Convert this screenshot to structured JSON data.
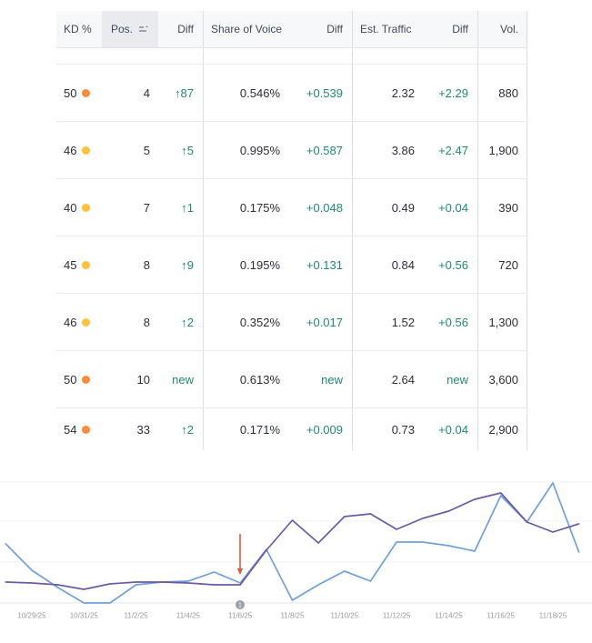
{
  "table": {
    "headers": {
      "kd": "KD %",
      "pos": "Pos.",
      "diff1": "Diff",
      "sov": "Share of Voice",
      "diff2": "Diff",
      "traffic": "Est. Traffic",
      "diff3": "Diff",
      "vol": "Vol."
    },
    "rows": [
      {
        "kd": "50",
        "kd_color": "#f98c3d",
        "pos": "4",
        "pos_diff": "↑87",
        "sov": "0.546%",
        "sov_diff": "+0.539",
        "traffic": "2.32",
        "traffic_diff": "+2.29",
        "vol": "880"
      },
      {
        "kd": "46",
        "kd_color": "#fdc13c",
        "pos": "5",
        "pos_diff": "↑5",
        "sov": "0.995%",
        "sov_diff": "+0.587",
        "traffic": "3.86",
        "traffic_diff": "+2.47",
        "vol": "1,900"
      },
      {
        "kd": "40",
        "kd_color": "#fdc13c",
        "pos": "7",
        "pos_diff": "↑1",
        "sov": "0.175%",
        "sov_diff": "+0.048",
        "traffic": "0.49",
        "traffic_diff": "+0.04",
        "vol": "390"
      },
      {
        "kd": "45",
        "kd_color": "#fdc13c",
        "pos": "8",
        "pos_diff": "↑9",
        "sov": "0.195%",
        "sov_diff": "+0.131",
        "traffic": "0.84",
        "traffic_diff": "+0.56",
        "vol": "720"
      },
      {
        "kd": "46",
        "kd_color": "#fdc13c",
        "pos": "8",
        "pos_diff": "↑2",
        "sov": "0.352%",
        "sov_diff": "+0.017",
        "traffic": "1.52",
        "traffic_diff": "+0.56",
        "vol": "1,300"
      },
      {
        "kd": "50",
        "kd_color": "#f98c3d",
        "pos": "10",
        "pos_diff": "new",
        "sov": "0.613%",
        "sov_diff": "new",
        "traffic": "2.64",
        "traffic_diff": "new",
        "vol": "3,600"
      },
      {
        "kd": "54",
        "kd_color": "#f98c3d",
        "pos": "33",
        "pos_diff": "↑2",
        "sov": "0.171%",
        "sov_diff": "+0.009",
        "traffic": "0.73",
        "traffic_diff": "+0.04",
        "vol": "2,900"
      }
    ]
  },
  "chart_data": {
    "type": "line",
    "x_labels": [
      "10/29/25",
      "10/31/25",
      "11/2/25",
      "11/4/25",
      "11/6/25",
      "11/8/25",
      "11/10/25",
      "11/12/25",
      "11/14/25",
      "11/16/25",
      "11/18/25"
    ],
    "x_daily": [
      "10/28/25",
      "10/29/25",
      "10/30/25",
      "10/31/25",
      "11/1/25",
      "11/2/25",
      "11/3/25",
      "11/4/25",
      "11/5/25",
      "11/6/25",
      "11/7/25",
      "11/8/25",
      "11/9/25",
      "11/10/25",
      "11/11/25",
      "11/12/25",
      "11/13/25",
      "11/14/25",
      "11/15/25",
      "11/16/25",
      "11/17/25",
      "11/18/25",
      "11/19/25"
    ],
    "series": [
      {
        "name": "series-blue",
        "color": "#6fa0db",
        "values": [
          65,
          36,
          17,
          0,
          0,
          20,
          23,
          24,
          34,
          22,
          59,
          3,
          20,
          35,
          24,
          67,
          67,
          63,
          57,
          118,
          89,
          132,
          56
        ]
      },
      {
        "name": "series-purple",
        "color": "#6c59a9",
        "values": [
          23,
          22,
          20,
          15,
          21,
          23,
          23,
          22,
          20,
          20,
          58,
          91,
          66,
          95,
          98,
          81,
          93,
          101,
          114,
          121,
          89,
          78,
          87
        ]
      }
    ],
    "ylim": [
      0,
      140
    ],
    "y_unit": "relative height above baseline (chart shows no y-axis labels)",
    "grid": "horizontal",
    "legend": "none",
    "annotation": {
      "type": "down-arrow",
      "at_label": "11/6/25",
      "color": "#e4593c"
    },
    "note_marker": {
      "label": "1",
      "at_label": "11/6/25",
      "color": "#99a1a9"
    }
  },
  "colors": {
    "positive_diff": "#1f8a73",
    "orange_dot": "#f98c3d",
    "yellow_dot": "#fdc13c",
    "header_bg": "#f7f8fa",
    "sorted_col_bg": "#e9ebef"
  }
}
